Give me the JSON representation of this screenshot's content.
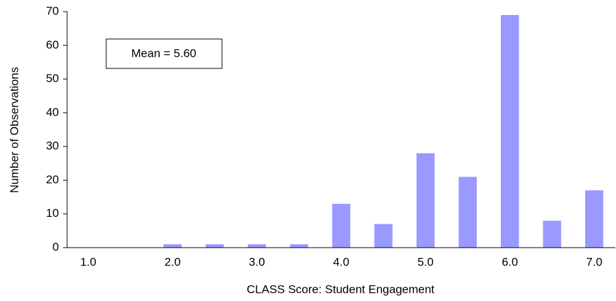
{
  "chart_data": {
    "type": "bar",
    "xlabel": "CLASS Score: Student Engagement",
    "ylabel": "Number of Observations",
    "annotation": "Mean = 5.60",
    "categories": [
      "1.0",
      null,
      "2.0",
      null,
      "3.0",
      null,
      "4.0",
      null,
      "5.0",
      null,
      "6.0",
      null,
      "7.0"
    ],
    "values": [
      0,
      0,
      1,
      1,
      1,
      1,
      13,
      7,
      28,
      21,
      69,
      8,
      17
    ],
    "color": "#9999ff",
    "ylim": [
      0,
      70
    ],
    "yticks": [
      0,
      10,
      20,
      30,
      40,
      50,
      60,
      70
    ],
    "grid": false
  }
}
